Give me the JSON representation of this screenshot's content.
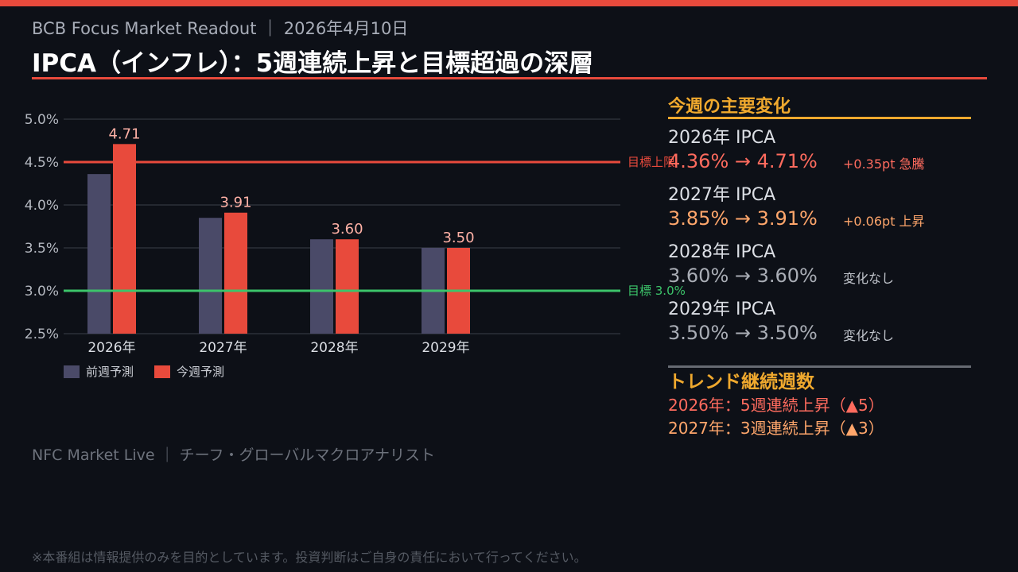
{
  "header": {
    "subtitle": "BCB Focus Market Readout ｜ 2026年4月10日",
    "title": "IPCA（インフレ）：5週連続上昇と目標超過の深層"
  },
  "legend": {
    "prev": "前週予測",
    "curr": "今週予測"
  },
  "chart_data": {
    "type": "bar",
    "categories": [
      "2026年",
      "2027年",
      "2028年",
      "2029年"
    ],
    "series": [
      {
        "name": "前週予測",
        "values": [
          4.36,
          3.85,
          3.6,
          3.5
        ],
        "color": "#4a4a68"
      },
      {
        "name": "今週予測",
        "values": [
          4.71,
          3.91,
          3.6,
          3.5
        ],
        "color": "#e84a3c"
      }
    ],
    "data_labels": [
      "4.71",
      "3.91",
      "3.60",
      "3.50"
    ],
    "ylim": [
      2.5,
      5.0
    ],
    "yticks": [
      "2.5%",
      "3.0%",
      "3.5%",
      "4.0%",
      "4.5%",
      "5.0%"
    ],
    "reference_lines": [
      {
        "label": "目標上限",
        "value": 4.5,
        "color": "#e84a3c"
      },
      {
        "label": "目標 3.0%",
        "value": 3.0,
        "color": "#3cc46a"
      }
    ],
    "grid": true
  },
  "panel": {
    "title": "今週の主要変化",
    "items": [
      {
        "label": "2026年 IPCA",
        "values": "4.36% → 4.71%",
        "note": "+0.35pt 急騰",
        "tone": "red"
      },
      {
        "label": "2027年 IPCA",
        "values": "3.85% → 3.91%",
        "note": "+0.06pt 上昇",
        "tone": "orange"
      },
      {
        "label": "2028年 IPCA",
        "values": "3.60% → 3.60%",
        "note": "変化なし",
        "tone": "gray"
      },
      {
        "label": "2029年 IPCA",
        "values": "3.50% → 3.50%",
        "note": "変化なし",
        "tone": "gray"
      }
    ]
  },
  "trend": {
    "title": "トレンド継続週数",
    "line1": "2026年：5週連続上昇（▲5）",
    "line2": "2027年：3週連続上昇（▲3）"
  },
  "footer": {
    "credit": "NFC Market Live ｜ チーフ・グローバルマクロアナリスト",
    "disclaimer": "※本番組は情報提供のみを目的としています。投資判断はご自身の責任において行ってください。"
  },
  "colors": {
    "accent": "#e84a3c",
    "highlight": "#f0a92e",
    "target_line": "#3cc46a",
    "prev_bar": "#4a4a68"
  }
}
